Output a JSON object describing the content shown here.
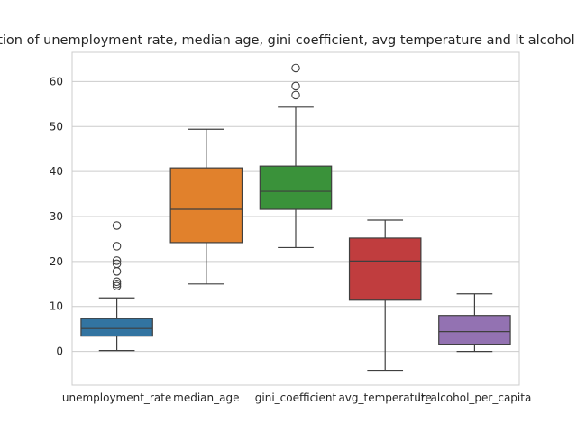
{
  "chart_data": {
    "type": "box",
    "title": "Distribution of unemployment rate, median age, gini coefficient, avg temperature and lt alcohol per capita",
    "xlabel": "",
    "ylabel": "",
    "ylim": [
      -7.5,
      66.5
    ],
    "yticks": [
      0,
      10,
      20,
      30,
      40,
      50,
      60
    ],
    "grid": true,
    "categories": [
      "unemployment_rate",
      "median_age",
      "gini_coefficient",
      "avg_temperature",
      "lt_alcohol_per_capita"
    ],
    "colors": [
      "#3274a1",
      "#e1812c",
      "#3a923a",
      "#c03d3e",
      "#9372b2"
    ],
    "boxes": [
      {
        "whisker_low": 0.2,
        "q1": 3.4,
        "median": 5.1,
        "q3": 7.3,
        "whisker_high": 11.9,
        "outliers": [
          14.5,
          15.0,
          15.5,
          17.8,
          19.5,
          20.2,
          23.4,
          28.0
        ]
      },
      {
        "whisker_low": 15.0,
        "q1": 24.2,
        "median": 31.6,
        "q3": 40.8,
        "whisker_high": 49.4,
        "outliers": []
      },
      {
        "whisker_low": 23.1,
        "q1": 31.6,
        "median": 35.6,
        "q3": 41.2,
        "whisker_high": 54.3,
        "outliers": [
          57.0,
          59.0,
          63.0
        ]
      },
      {
        "whisker_low": -4.2,
        "q1": 11.4,
        "median": 20.1,
        "q3": 25.2,
        "whisker_high": 29.2,
        "outliers": []
      },
      {
        "whisker_low": 0.0,
        "q1": 1.6,
        "median": 4.4,
        "q3": 8.0,
        "whisker_high": 12.8,
        "outliers": []
      }
    ]
  }
}
